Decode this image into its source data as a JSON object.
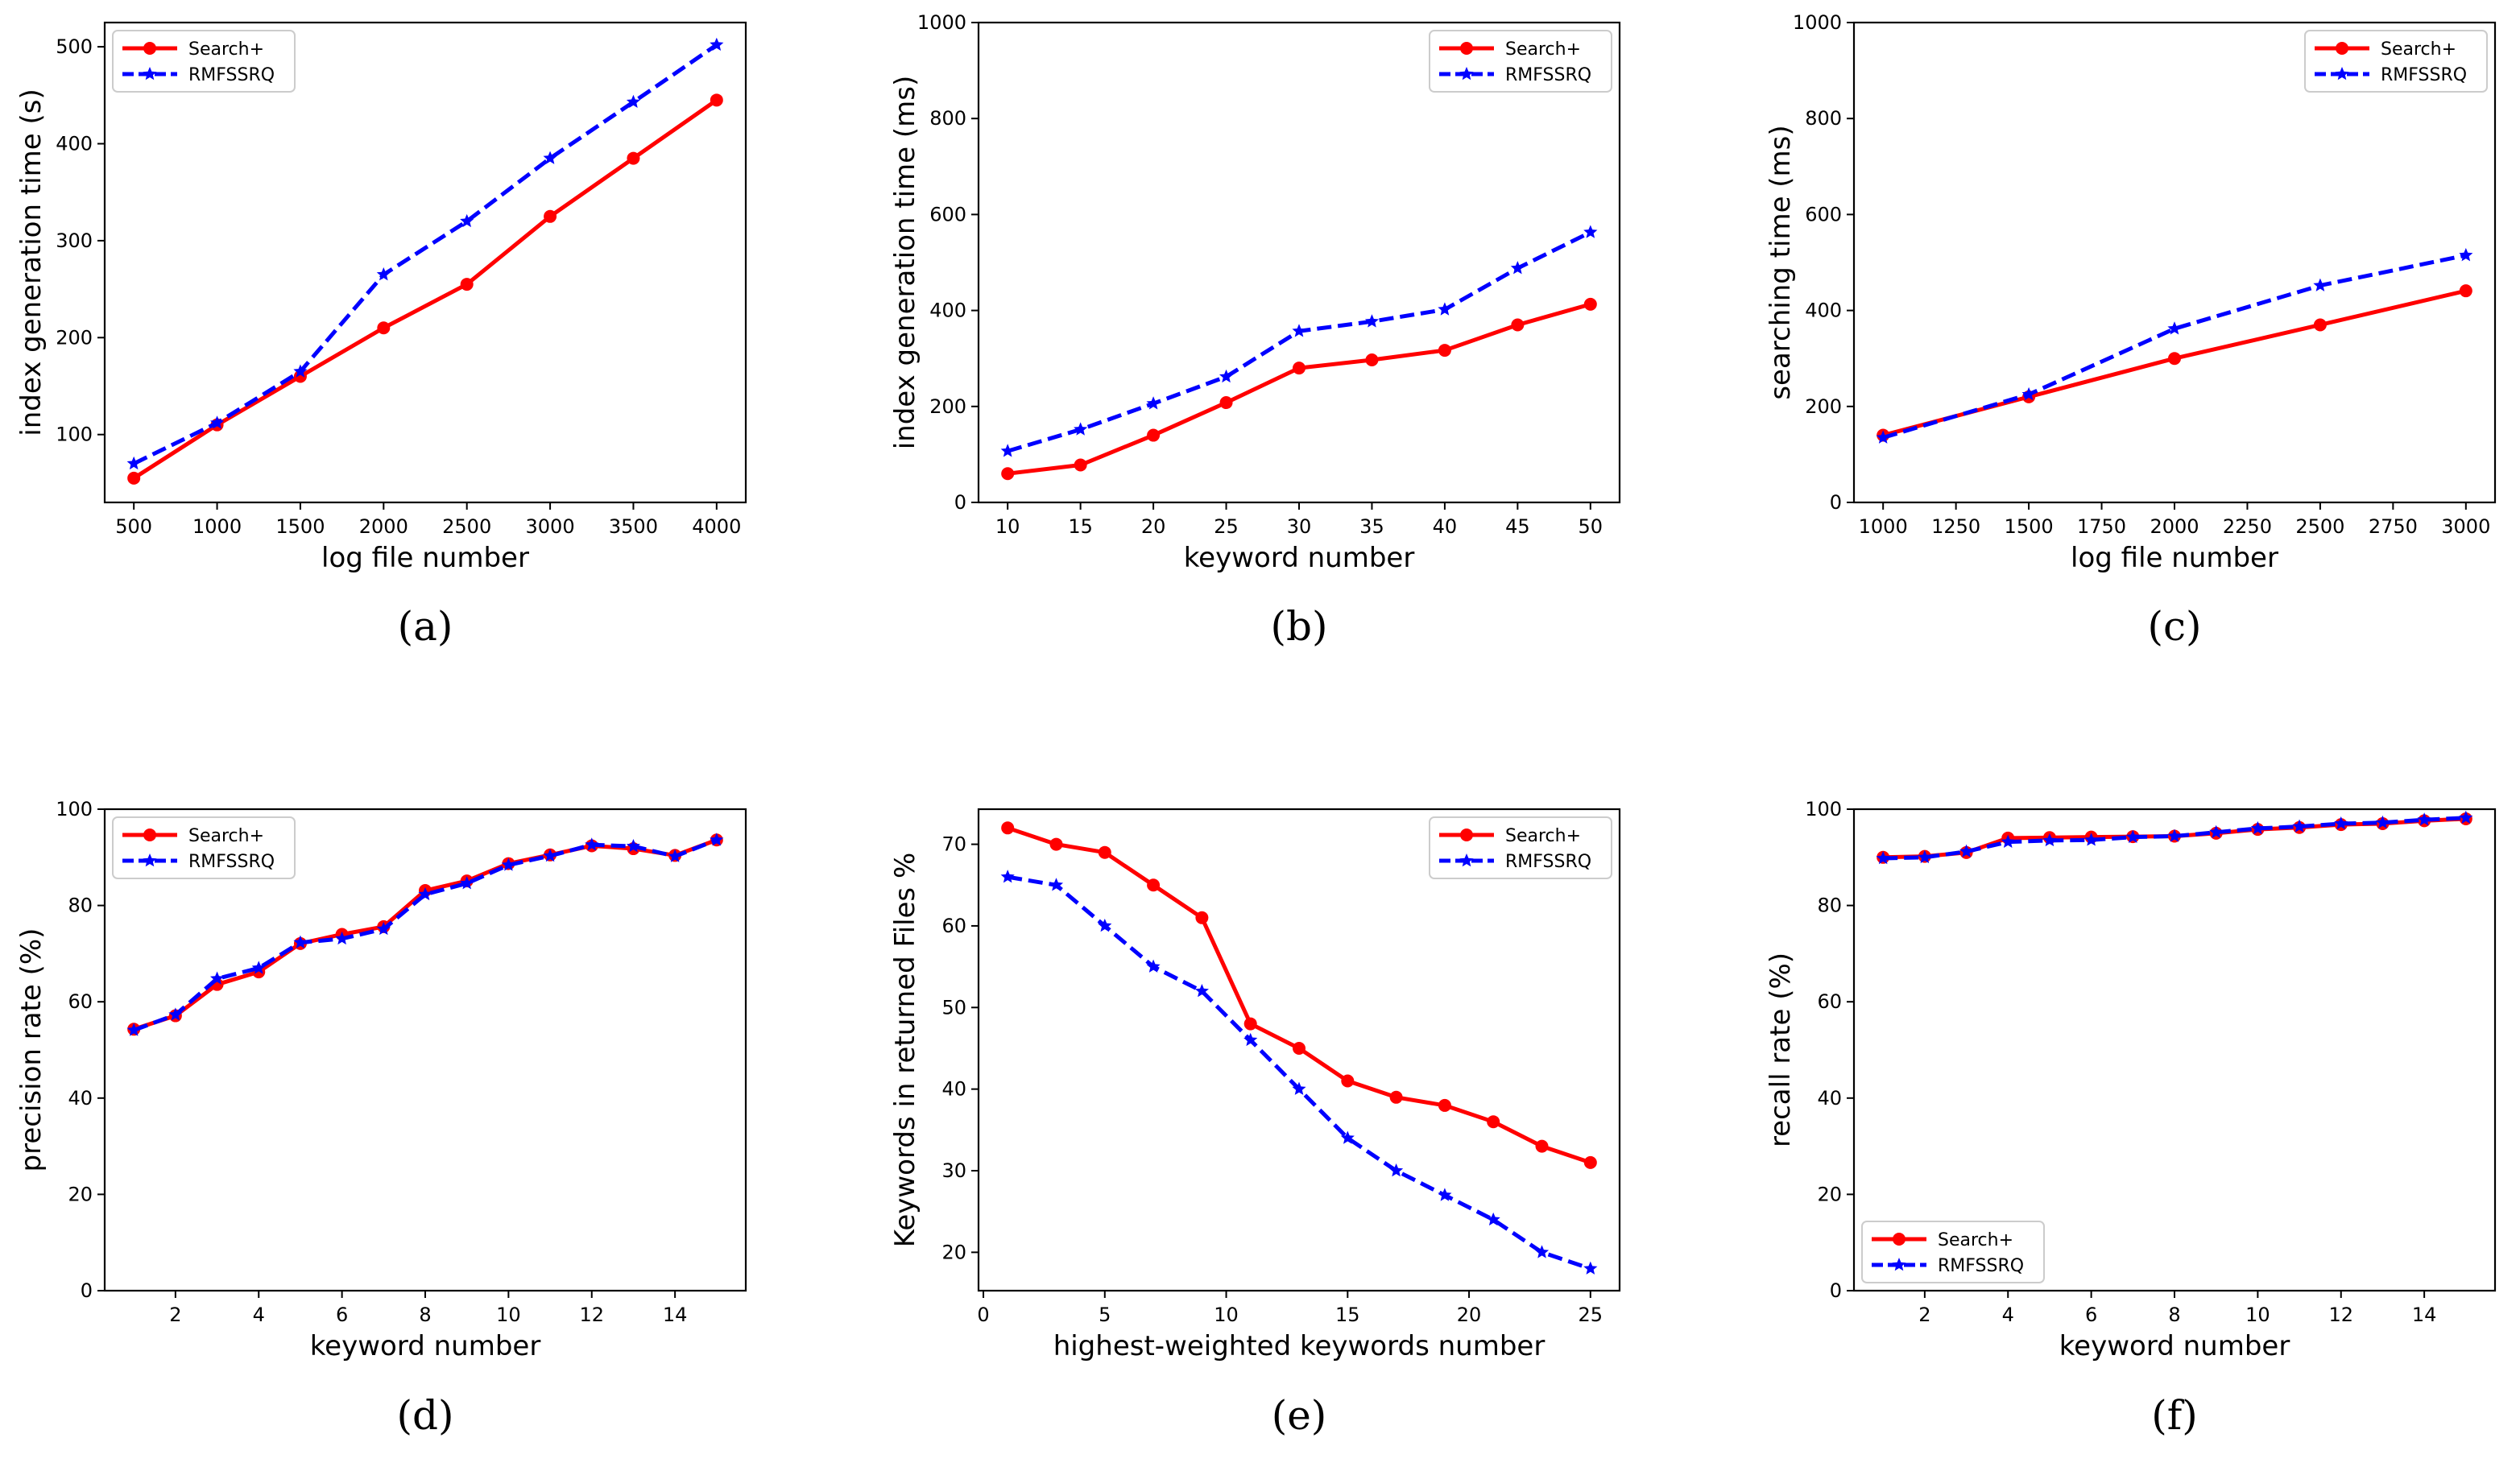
{
  "figure": {
    "colors": {
      "search_plus": "#ff0000",
      "rmfssrq": "#0000ff"
    }
  },
  "chart_data": [
    {
      "id": "a",
      "type": "line",
      "panel_label": "(a)",
      "xlabel": "log file number",
      "ylabel": "index generation time (s)",
      "xlim": [
        325,
        4175
      ],
      "ylim": [
        30,
        525
      ],
      "xticks": [
        500,
        1000,
        1500,
        2000,
        2500,
        3000,
        3500,
        4000
      ],
      "yticks": [
        100,
        200,
        300,
        400,
        500
      ],
      "legend_loc": "upper-left",
      "series": [
        {
          "name": "Search+",
          "x": [
            500,
            1000,
            1500,
            2000,
            2500,
            3000,
            3500,
            4000
          ],
          "values": [
            55,
            110,
            160,
            210,
            255,
            325,
            385,
            445
          ]
        },
        {
          "name": "RMFSSRQ",
          "x": [
            500,
            1000,
            1500,
            2000,
            2500,
            3000,
            3500,
            4000
          ],
          "values": [
            70,
            112,
            165,
            265,
            320,
            385,
            443,
            502
          ]
        }
      ]
    },
    {
      "id": "b",
      "type": "line",
      "panel_label": "(b)",
      "xlabel": "keyword number",
      "ylabel": "index generation time (ms)",
      "xlim": [
        8,
        52
      ],
      "ylim": [
        0,
        1000
      ],
      "xticks": [
        10,
        15,
        20,
        25,
        30,
        35,
        40,
        45,
        50
      ],
      "yticks": [
        0,
        200,
        400,
        600,
        800,
        1000
      ],
      "legend_loc": "upper-right",
      "series": [
        {
          "name": "Search+",
          "x": [
            10,
            15,
            20,
            25,
            30,
            35,
            40,
            45,
            50
          ],
          "values": [
            60,
            78,
            140,
            208,
            280,
            297,
            317,
            370,
            413
          ]
        },
        {
          "name": "RMFSSRQ",
          "x": [
            10,
            15,
            20,
            25,
            30,
            35,
            40,
            45,
            50
          ],
          "values": [
            107,
            152,
            206,
            262,
            357,
            377,
            402,
            488,
            563
          ]
        }
      ]
    },
    {
      "id": "c",
      "type": "line",
      "panel_label": "(c)",
      "xlabel": "log file number",
      "ylabel": "searching time (ms)",
      "xlim": [
        900,
        3100
      ],
      "ylim": [
        0,
        1000
      ],
      "xticks": [
        1000,
        1250,
        1500,
        1750,
        2000,
        2250,
        2500,
        2750,
        3000
      ],
      "yticks": [
        0,
        200,
        400,
        600,
        800,
        1000
      ],
      "legend_loc": "upper-right",
      "series": [
        {
          "name": "Search+",
          "x": [
            1000,
            1500,
            2000,
            2500,
            3000
          ],
          "values": [
            140,
            220,
            300,
            370,
            441
          ]
        },
        {
          "name": "RMFSSRQ",
          "x": [
            1000,
            1500,
            2000,
            2500,
            3000
          ],
          "values": [
            135,
            225,
            362,
            452,
            515
          ]
        }
      ]
    },
    {
      "id": "d",
      "type": "line",
      "panel_label": "(d)",
      "xlabel": "keyword number",
      "ylabel": "precision rate (%)",
      "xlim": [
        0.3,
        15.7
      ],
      "ylim": [
        0,
        100
      ],
      "xticks": [
        2,
        4,
        6,
        8,
        10,
        12,
        14
      ],
      "yticks": [
        0,
        20,
        40,
        60,
        80,
        100
      ],
      "legend_loc": "upper-left",
      "series": [
        {
          "name": "Search+",
          "x": [
            1,
            2,
            3,
            4,
            5,
            6,
            7,
            8,
            9,
            10,
            11,
            12,
            13,
            14,
            15
          ],
          "values": [
            54.3,
            57.1,
            63.6,
            66.2,
            72.1,
            74.0,
            75.6,
            83.1,
            85.1,
            88.7,
            90.5,
            92.4,
            91.8,
            90.4,
            93.6
          ]
        },
        {
          "name": "RMFSSRQ",
          "x": [
            1,
            2,
            3,
            4,
            5,
            6,
            7,
            8,
            9,
            10,
            11,
            12,
            13,
            14,
            15
          ],
          "values": [
            54.1,
            57.3,
            64.8,
            67.0,
            72.3,
            73.1,
            75.1,
            82.3,
            84.6,
            88.4,
            90.3,
            92.6,
            92.3,
            90.2,
            93.6
          ]
        }
      ]
    },
    {
      "id": "e",
      "type": "line",
      "panel_label": "(e)",
      "xlabel": "highest-weighted keywords number",
      "ylabel": "Keywords in returned Files %",
      "xlim": [
        -0.2,
        26.2
      ],
      "ylim": [
        15.3,
        74.3
      ],
      "xticks": [
        0,
        5,
        10,
        15,
        20,
        25
      ],
      "yticks": [
        20,
        30,
        40,
        50,
        60,
        70
      ],
      "legend_loc": "upper-right",
      "series": [
        {
          "name": "Search+",
          "x": [
            1,
            3,
            5,
            7,
            9,
            11,
            13,
            15,
            17,
            19,
            21,
            23,
            25
          ],
          "values": [
            72,
            70,
            69,
            65,
            61,
            48,
            45,
            41,
            39,
            38,
            36,
            33,
            31
          ]
        },
        {
          "name": "RMFSSRQ",
          "x": [
            1,
            3,
            5,
            7,
            9,
            11,
            13,
            15,
            17,
            19,
            21,
            23,
            25
          ],
          "values": [
            66,
            65,
            60,
            55,
            52,
            46,
            40,
            34,
            30,
            27,
            24,
            20,
            18
          ]
        }
      ]
    },
    {
      "id": "f",
      "type": "line",
      "panel_label": "(f)",
      "xlabel": "keyword number",
      "ylabel": "recall rate (%)",
      "xlim": [
        0.3,
        15.7
      ],
      "ylim": [
        0,
        100
      ],
      "xticks": [
        2,
        4,
        6,
        8,
        10,
        12,
        14
      ],
      "yticks": [
        0,
        20,
        40,
        60,
        80,
        100
      ],
      "legend_loc": "lower-left",
      "series": [
        {
          "name": "Search+",
          "x": [
            1,
            2,
            3,
            4,
            5,
            6,
            7,
            8,
            9,
            10,
            11,
            12,
            13,
            14,
            15
          ],
          "values": [
            90.0,
            90.2,
            91.0,
            94.0,
            94.1,
            94.2,
            94.3,
            94.4,
            95.0,
            95.8,
            96.2,
            96.8,
            97.0,
            97.6,
            98.0
          ]
        },
        {
          "name": "RMFSSRQ",
          "x": [
            1,
            2,
            3,
            4,
            5,
            6,
            7,
            8,
            9,
            10,
            11,
            12,
            13,
            14,
            15
          ],
          "values": [
            89.8,
            90.0,
            91.2,
            93.2,
            93.5,
            93.6,
            94.2,
            94.4,
            95.2,
            96.0,
            96.4,
            97.0,
            97.2,
            97.8,
            98.2
          ]
        }
      ]
    }
  ]
}
